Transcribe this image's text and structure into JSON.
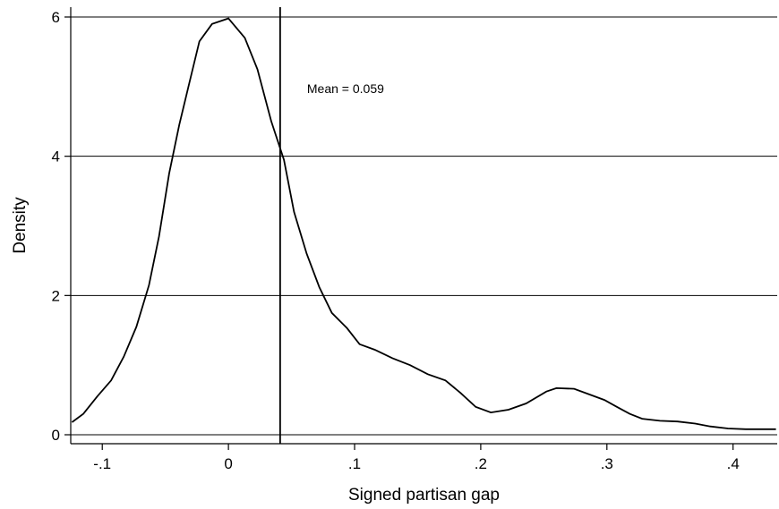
{
  "chart_data": {
    "type": "line",
    "xlabel": "Signed partisan gap",
    "ylabel": "Density",
    "xlim": [
      -0.125,
      0.435
    ],
    "ylim": [
      0,
      6.1
    ],
    "x_ticks": [
      -0.1,
      0,
      0.1,
      0.2,
      0.3,
      0.4
    ],
    "x_tick_labels": [
      "-.1",
      "0",
      ".1",
      ".2",
      ".3",
      ".4"
    ],
    "y_ticks": [
      0,
      2,
      4,
      6
    ],
    "y_tick_labels": [
      "0",
      "2",
      "4",
      "6"
    ],
    "grid": "horizontal",
    "series": [
      {
        "x": [
          -0.124,
          -0.115,
          -0.104,
          -0.093,
          -0.083,
          -0.073,
          -0.063,
          -0.055,
          -0.047,
          -0.039,
          -0.031,
          -0.023,
          -0.013,
          0.0,
          0.013,
          0.023,
          0.034,
          0.044,
          0.052,
          0.062,
          0.072,
          0.082,
          0.094,
          0.104,
          0.116,
          0.13,
          0.144,
          0.158,
          0.172,
          0.184,
          0.196,
          0.208,
          0.222,
          0.236,
          0.252,
          0.26,
          0.274,
          0.286,
          0.298,
          0.308,
          0.318,
          0.328,
          0.342,
          0.356,
          0.37,
          0.382,
          0.396,
          0.41,
          0.422,
          0.434
        ],
        "y": [
          0.18,
          0.3,
          0.55,
          0.78,
          1.12,
          1.55,
          2.15,
          2.85,
          3.75,
          4.45,
          5.05,
          5.65,
          5.9,
          5.98,
          5.7,
          5.25,
          4.5,
          3.95,
          3.2,
          2.6,
          2.12,
          1.75,
          1.53,
          1.3,
          1.22,
          1.1,
          1.0,
          0.87,
          0.78,
          0.6,
          0.4,
          0.32,
          0.36,
          0.45,
          0.62,
          0.67,
          0.66,
          0.58,
          0.5,
          0.4,
          0.3,
          0.23,
          0.2,
          0.19,
          0.16,
          0.12,
          0.09,
          0.08,
          0.08,
          0.08
        ]
      }
    ],
    "vertical_line_x": 0.041,
    "annotation": "Mean = 0.059"
  }
}
